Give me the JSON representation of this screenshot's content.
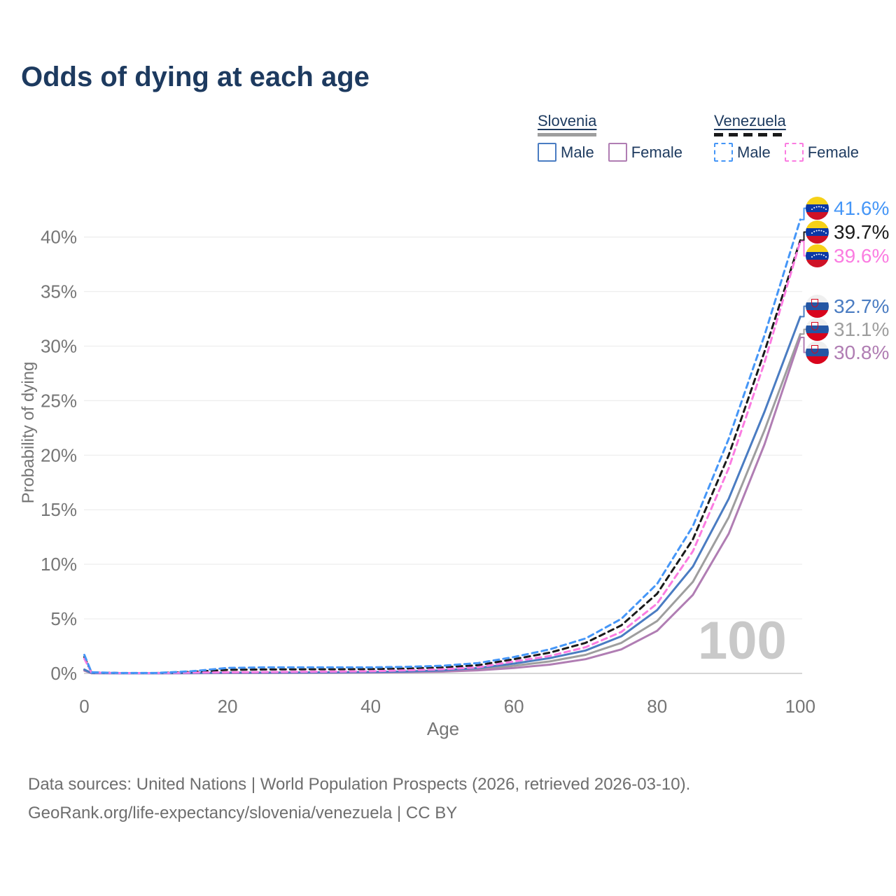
{
  "title": "Odds of dying at each age",
  "watermark": "100",
  "legend": {
    "groups": [
      {
        "name": "Slovenia",
        "style": "solid",
        "items": [
          {
            "label": "Male",
            "series": "Slovenia Male"
          },
          {
            "label": "Female",
            "series": "Slovenia Female"
          }
        ]
      },
      {
        "name": "Venezuela",
        "style": "dashed",
        "items": [
          {
            "label": "Male",
            "series": "Venezuela Male"
          },
          {
            "label": "Female",
            "series": "Venezuela Female"
          }
        ]
      }
    ]
  },
  "footer": {
    "line1": "Data sources: United Nations | World Population Prospects (2026, retrieved 2026-03-10).",
    "line2": "GeoRank.org/life-expectancy/slovenia/venezuela | CC BY"
  },
  "chart_data": {
    "type": "line",
    "title": "Odds of dying at each age",
    "xlabel": "Age",
    "ylabel": "Probability of dying",
    "xlim": [
      0,
      100
    ],
    "ylim": [
      0,
      43
    ],
    "x_ticks": [
      0,
      20,
      40,
      60,
      80,
      100
    ],
    "y_ticks": [
      "0%",
      "5%",
      "10%",
      "15%",
      "20%",
      "25%",
      "30%",
      "35%",
      "40%"
    ],
    "grid": "horizontal",
    "legend_position": "top-right",
    "ages": [
      0,
      1,
      5,
      10,
      15,
      20,
      25,
      30,
      35,
      40,
      45,
      50,
      55,
      60,
      65,
      70,
      75,
      80,
      85,
      90,
      95,
      100
    ],
    "series": [
      {
        "name": "Slovenia Both",
        "country": "Slovenia",
        "line": "solid",
        "color": "#9e9e9e",
        "end_label": "31.1%",
        "values": [
          0.3,
          0.025,
          0.01,
          0.01,
          0.025,
          0.05,
          0.06,
          0.07,
          0.08,
          0.1,
          0.15,
          0.22,
          0.38,
          0.7,
          1.1,
          1.7,
          2.8,
          4.8,
          8.4,
          14.3,
          22.3,
          31.1
        ]
      },
      {
        "name": "Slovenia Female",
        "country": "Slovenia",
        "line": "solid",
        "color": "#b07db3",
        "end_label": "30.8%",
        "values": [
          0.25,
          0.02,
          0.01,
          0.01,
          0.02,
          0.03,
          0.04,
          0.05,
          0.06,
          0.08,
          0.11,
          0.16,
          0.28,
          0.5,
          0.8,
          1.3,
          2.2,
          3.9,
          7.2,
          12.8,
          21.0,
          30.8
        ]
      },
      {
        "name": "Slovenia Male",
        "country": "Slovenia",
        "line": "solid",
        "color": "#4a7cc2",
        "end_label": "32.7%",
        "values": [
          0.35,
          0.03,
          0.01,
          0.01,
          0.03,
          0.07,
          0.08,
          0.09,
          0.1,
          0.13,
          0.18,
          0.28,
          0.5,
          0.9,
          1.4,
          2.1,
          3.4,
          5.8,
          9.8,
          16.0,
          24.0,
          32.7
        ]
      },
      {
        "name": "Venezuela Both",
        "country": "Venezuela",
        "line": "dashed",
        "color": "#1a1a1a",
        "end_label": "39.7%",
        "values": [
          1.5,
          0.09,
          0.035,
          0.035,
          0.14,
          0.33,
          0.36,
          0.37,
          0.38,
          0.4,
          0.45,
          0.55,
          0.75,
          1.3,
          1.9,
          2.8,
          4.4,
          7.3,
          12.3,
          20.0,
          29.5,
          39.7
        ]
      },
      {
        "name": "Venezuela Female",
        "country": "Venezuela",
        "line": "dashed",
        "color": "#fb7ce1",
        "end_label": "39.6%",
        "values": [
          1.35,
          0.08,
          0.03,
          0.03,
          0.07,
          0.1,
          0.12,
          0.15,
          0.17,
          0.2,
          0.28,
          0.38,
          0.55,
          1.1,
          1.6,
          2.4,
          3.8,
          6.4,
          11.2,
          18.8,
          28.5,
          39.6
        ]
      },
      {
        "name": "Venezuela Male",
        "country": "Venezuela",
        "line": "dashed",
        "color": "#4596f7",
        "end_label": "41.6%",
        "values": [
          1.7,
          0.1,
          0.04,
          0.04,
          0.2,
          0.5,
          0.55,
          0.55,
          0.55,
          0.55,
          0.6,
          0.7,
          0.95,
          1.5,
          2.2,
          3.2,
          5.0,
          8.2,
          13.5,
          21.5,
          31.0,
          41.6
        ]
      }
    ],
    "end_labels": [
      {
        "value": "41.6%",
        "flag": "venezuela",
        "series": "Venezuela Male"
      },
      {
        "value": "39.7%",
        "flag": "venezuela",
        "series": "Venezuela Both"
      },
      {
        "value": "39.6%",
        "flag": "venezuela",
        "series": "Venezuela Female"
      },
      {
        "value": "32.7%",
        "flag": "slovenia",
        "series": "Slovenia Male"
      },
      {
        "value": "31.1%",
        "flag": "slovenia",
        "series": "Slovenia Both"
      },
      {
        "value": "30.8%",
        "flag": "slovenia",
        "series": "Slovenia Female"
      }
    ]
  }
}
